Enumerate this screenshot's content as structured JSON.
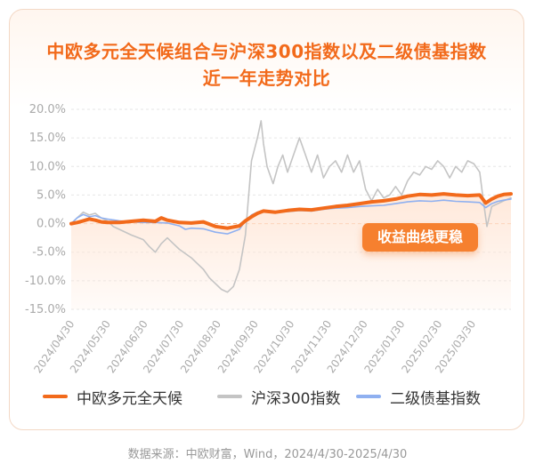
{
  "title_line1": "中欧多元全天候组合与沪深300指数以及二级债基指数",
  "title_line2": "近一年走势对比",
  "callout": "收益曲线更稳",
  "source": "数据来源：中欧财富，Wind，2024/4/30-2025/4/30",
  "colors": {
    "fund": "#f26a1b",
    "hs300": "#c4c4c4",
    "bond": "#8fb0f0",
    "zero_line": "#f5b38a",
    "fill": "#ffe6d6"
  },
  "chart_data": {
    "type": "line",
    "title": "中欧多元全天候组合与沪深300指数以及二级债基指数近一年走势对比",
    "ylim": [
      -15,
      20
    ],
    "yticks": [
      "20.0%",
      "15.0%",
      "10.0%",
      "5.0%",
      "0.0%",
      "-5.0%",
      "-10.0%",
      "-15.0%"
    ],
    "ytick_values": [
      20,
      15,
      10,
      5,
      0,
      -5,
      -10,
      -15
    ],
    "x_start": "2024/04/30",
    "x_end": "2025/04/30",
    "xticks": [
      "2024/04/30",
      "2024/05/30",
      "2024/06/30",
      "2024/07/30",
      "2024/08/30",
      "2024/09/30",
      "2024/10/30",
      "2024/11/30",
      "2024/12/30",
      "2025/01/30",
      "2025/02/30",
      "2025/03/30"
    ],
    "xtick_days": [
      0,
      30,
      61,
      91,
      122,
      153,
      183,
      214,
      244,
      275,
      306,
      334
    ],
    "series": [
      {
        "name": "中欧多元全天候",
        "key": "fund",
        "points": [
          [
            0,
            0
          ],
          [
            5,
            0.2
          ],
          [
            10,
            0.5
          ],
          [
            15,
            0.8
          ],
          [
            20,
            0.6
          ],
          [
            25,
            0.3
          ],
          [
            30,
            0.2
          ],
          [
            40,
            0.2
          ],
          [
            50,
            0.4
          ],
          [
            60,
            0.6
          ],
          [
            70,
            0.4
          ],
          [
            75,
            1.0
          ],
          [
            80,
            0.6
          ],
          [
            90,
            0.2
          ],
          [
            100,
            0.1
          ],
          [
            110,
            0.3
          ],
          [
            120,
            -0.5
          ],
          [
            130,
            -0.8
          ],
          [
            140,
            -0.4
          ],
          [
            145,
            0.5
          ],
          [
            150,
            1.2
          ],
          [
            155,
            1.8
          ],
          [
            160,
            2.2
          ],
          [
            170,
            2.0
          ],
          [
            180,
            2.3
          ],
          [
            190,
            2.5
          ],
          [
            200,
            2.4
          ],
          [
            210,
            2.7
          ],
          [
            220,
            3.0
          ],
          [
            230,
            3.2
          ],
          [
            240,
            3.5
          ],
          [
            250,
            3.8
          ],
          [
            260,
            4.0
          ],
          [
            270,
            4.3
          ],
          [
            280,
            4.8
          ],
          [
            290,
            5.1
          ],
          [
            300,
            5.0
          ],
          [
            310,
            5.2
          ],
          [
            320,
            5.0
          ],
          [
            330,
            4.9
          ],
          [
            340,
            5.0
          ],
          [
            345,
            3.6
          ],
          [
            350,
            4.3
          ],
          [
            355,
            4.8
          ],
          [
            360,
            5.1
          ],
          [
            366,
            5.2
          ]
        ]
      },
      {
        "name": "沪深300指数",
        "key": "hs300",
        "points": [
          [
            0,
            0
          ],
          [
            5,
            1.0
          ],
          [
            10,
            2.0
          ],
          [
            15,
            1.5
          ],
          [
            20,
            1.8
          ],
          [
            25,
            1.0
          ],
          [
            30,
            0.5
          ],
          [
            35,
            -0.5
          ],
          [
            40,
            -1.0
          ],
          [
            50,
            -2.0
          ],
          [
            60,
            -2.8
          ],
          [
            65,
            -4.0
          ],
          [
            70,
            -5.0
          ],
          [
            75,
            -3.5
          ],
          [
            80,
            -2.5
          ],
          [
            85,
            -3.5
          ],
          [
            90,
            -4.5
          ],
          [
            100,
            -6.0
          ],
          [
            105,
            -7.0
          ],
          [
            110,
            -8.0
          ],
          [
            115,
            -9.5
          ],
          [
            120,
            -10.5
          ],
          [
            125,
            -11.5
          ],
          [
            130,
            -12.0
          ],
          [
            135,
            -11.0
          ],
          [
            140,
            -8.0
          ],
          [
            145,
            -2.0
          ],
          [
            150,
            11.0
          ],
          [
            155,
            15.0
          ],
          [
            158,
            18.0
          ],
          [
            160,
            14.0
          ],
          [
            163,
            10.0
          ],
          [
            168,
            7.0
          ],
          [
            172,
            10.0
          ],
          [
            176,
            12.0
          ],
          [
            180,
            9.0
          ],
          [
            185,
            12.0
          ],
          [
            190,
            15.0
          ],
          [
            195,
            12.0
          ],
          [
            200,
            9.0
          ],
          [
            205,
            12.0
          ],
          [
            210,
            8.0
          ],
          [
            215,
            10.0
          ],
          [
            220,
            11.0
          ],
          [
            225,
            9.0
          ],
          [
            230,
            12.0
          ],
          [
            235,
            9.0
          ],
          [
            240,
            11.0
          ],
          [
            245,
            6.0
          ],
          [
            250,
            4.0
          ],
          [
            255,
            6.0
          ],
          [
            260,
            4.5
          ],
          [
            265,
            5.0
          ],
          [
            270,
            6.5
          ],
          [
            275,
            5.0
          ],
          [
            280,
            7.5
          ],
          [
            285,
            9.0
          ],
          [
            290,
            8.5
          ],
          [
            295,
            10.0
          ],
          [
            300,
            9.5
          ],
          [
            305,
            11.0
          ],
          [
            310,
            10.0
          ],
          [
            315,
            8.0
          ],
          [
            320,
            10.0
          ],
          [
            325,
            9.0
          ],
          [
            330,
            11.0
          ],
          [
            335,
            10.5
          ],
          [
            340,
            9.0
          ],
          [
            343,
            4.0
          ],
          [
            346,
            -0.5
          ],
          [
            350,
            3.0
          ],
          [
            355,
            3.5
          ],
          [
            360,
            4.0
          ],
          [
            366,
            4.5
          ]
        ]
      },
      {
        "name": "二级债基指数",
        "key": "bond",
        "points": [
          [
            0,
            0
          ],
          [
            5,
            1.0
          ],
          [
            10,
            1.6
          ],
          [
            15,
            1.2
          ],
          [
            20,
            1.4
          ],
          [
            25,
            1.0
          ],
          [
            30,
            0.8
          ],
          [
            40,
            0.5
          ],
          [
            50,
            0.3
          ],
          [
            60,
            0.2
          ],
          [
            70,
            0.2
          ],
          [
            80,
            0.1
          ],
          [
            90,
            -0.4
          ],
          [
            95,
            -1.0
          ],
          [
            100,
            -0.8
          ],
          [
            110,
            -0.9
          ],
          [
            120,
            -1.5
          ],
          [
            130,
            -1.8
          ],
          [
            140,
            -1.0
          ],
          [
            145,
            0.5
          ],
          [
            150,
            1.5
          ],
          [
            155,
            2.0
          ],
          [
            160,
            2.2
          ],
          [
            170,
            2.0
          ],
          [
            180,
            2.1
          ],
          [
            190,
            2.3
          ],
          [
            200,
            2.2
          ],
          [
            210,
            2.5
          ],
          [
            220,
            2.7
          ],
          [
            230,
            2.8
          ],
          [
            240,
            3.0
          ],
          [
            250,
            3.1
          ],
          [
            260,
            3.2
          ],
          [
            270,
            3.5
          ],
          [
            280,
            3.8
          ],
          [
            290,
            4.0
          ],
          [
            300,
            3.9
          ],
          [
            310,
            4.1
          ],
          [
            320,
            3.9
          ],
          [
            330,
            3.8
          ],
          [
            340,
            3.7
          ],
          [
            345,
            2.8
          ],
          [
            350,
            3.5
          ],
          [
            355,
            3.9
          ],
          [
            360,
            4.1
          ],
          [
            366,
            4.3
          ]
        ]
      }
    ]
  },
  "legend": {
    "fund": "中欧多元全天候",
    "hs300": "沪深300指数",
    "bond": "二级债基指数"
  }
}
